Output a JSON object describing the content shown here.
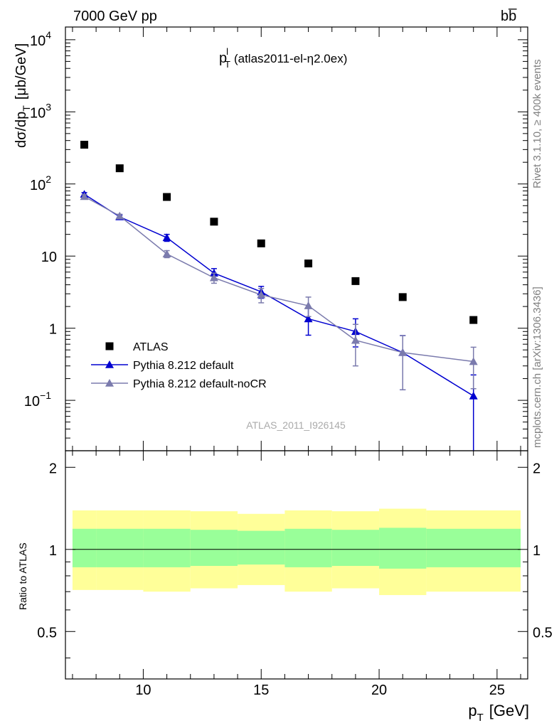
{
  "header": {
    "left_label": "7000 GeV pp",
    "right_label": "bb̅"
  },
  "side_labels": {
    "rivet": "Rivet 3.1.10, ≥ 400k events",
    "mcplots": "mcplots.cern.ch [arXiv:1306.3436]"
  },
  "chart_data": [
    {
      "type": "scatter",
      "title": "p",
      "title_sup": "l",
      "title_sub": "T",
      "title_detail": "(atlas2011-el-η2.0ex)",
      "watermark": "ATLAS_2011_I926145",
      "xlabel": "p",
      "xlabel_sub": "T",
      "xlabel_unit": "[GeV]",
      "ylabel": "dσ/dp",
      "ylabel_sub": "T",
      "ylabel_unit": "[μb/GeV]",
      "xlim": [
        6.7,
        26.3
      ],
      "ylim": [
        0.02,
        15000
      ],
      "yscale": "log",
      "x_ticks": [
        10,
        15,
        20,
        25
      ],
      "y_ticks": [
        {
          "value": 0.1,
          "base": "10",
          "exp": "−1"
        },
        {
          "value": 1,
          "base": "1",
          "exp": ""
        },
        {
          "value": 10,
          "base": "10",
          "exp": ""
        },
        {
          "value": 100,
          "base": "10",
          "exp": "2"
        },
        {
          "value": 1000,
          "base": "10",
          "exp": "3"
        },
        {
          "value": 10000,
          "base": "10",
          "exp": "4"
        }
      ],
      "legend_position": "lower-left",
      "series": [
        {
          "name": "ATLAS",
          "marker": "square",
          "color": "#000000",
          "x": [
            7.5,
            9,
            11,
            13,
            15,
            17,
            19,
            21,
            24
          ],
          "y": [
            350,
            165,
            66,
            30,
            15,
            7.9,
            4.5,
            2.7,
            1.3
          ]
        },
        {
          "name": "Pythia 8.212 default",
          "marker": "triangle",
          "color": "#0000d0",
          "x": [
            7.5,
            9,
            11,
            13,
            15,
            17,
            19,
            21,
            24
          ],
          "y": [
            72,
            35,
            18,
            5.8,
            3.2,
            1.35,
            0.9,
            0.46,
            0.115
          ],
          "err_lo": [
            4,
            2,
            2,
            0.9,
            0.6,
            0.55,
            0.35,
            0.32,
            0.113
          ],
          "err_hi": [
            4,
            2,
            2,
            0.9,
            0.6,
            0.55,
            0.45,
            0.33,
            0.11
          ]
        },
        {
          "name": "Pythia 8.212 default-noCR",
          "marker": "triangle",
          "color": "#7b7bad",
          "x": [
            7.5,
            9,
            11,
            13,
            15,
            17,
            19,
            21,
            24
          ],
          "y": [
            67,
            36,
            10.7,
            5.0,
            2.9,
            2.05,
            0.68,
            0.46,
            0.345
          ],
          "err_lo": [
            4,
            2,
            1.2,
            0.8,
            0.65,
            0.6,
            0.38,
            0.32,
            0.2
          ],
          "err_hi": [
            4,
            2,
            1.2,
            0.8,
            0.65,
            0.65,
            0.45,
            0.33,
            0.2
          ]
        }
      ]
    },
    {
      "type": "area",
      "ylabel": "Ratio to ATLAS",
      "xlim": [
        6.7,
        26.3
      ],
      "ylim": [
        0.335,
        2.3
      ],
      "yscale": "log",
      "y_ticks": [
        {
          "value": 0.5,
          "label": "0.5"
        },
        {
          "value": 1,
          "label": "1"
        },
        {
          "value": 2,
          "label": "2"
        }
      ],
      "bins": [
        7,
        8,
        10,
        12,
        14,
        16,
        18,
        20,
        22,
        26
      ],
      "stat_band": {
        "color": "#99ff99",
        "lo": [
          0.86,
          0.86,
          0.86,
          0.87,
          0.88,
          0.86,
          0.87,
          0.85,
          0.86
        ],
        "hi": [
          1.19,
          1.19,
          1.19,
          1.18,
          1.17,
          1.19,
          1.18,
          1.2,
          1.19
        ]
      },
      "total_band": {
        "color": "#ffff99",
        "lo": [
          0.71,
          0.71,
          0.7,
          0.72,
          0.74,
          0.7,
          0.72,
          0.68,
          0.7
        ],
        "hi": [
          1.39,
          1.39,
          1.39,
          1.38,
          1.35,
          1.39,
          1.38,
          1.41,
          1.39
        ]
      },
      "reference_line": 1
    }
  ]
}
